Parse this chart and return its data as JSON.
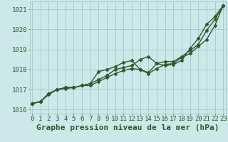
{
  "xlabel": "Graphe pression niveau de la mer (hPa)",
  "bg_color": "#cce8e8",
  "grid_color": "#aacccc",
  "line_color": "#2d5a2d",
  "x": [
    0,
    1,
    2,
    3,
    4,
    5,
    6,
    7,
    8,
    9,
    10,
    11,
    12,
    13,
    14,
    15,
    16,
    17,
    18,
    19,
    20,
    21,
    22,
    23
  ],
  "series": [
    [
      1016.3,
      1016.4,
      1016.8,
      1017.0,
      1017.05,
      1017.1,
      1017.2,
      1017.2,
      1017.4,
      1017.6,
      1017.8,
      1017.95,
      1018.05,
      1018.0,
      1017.85,
      1018.3,
      1018.2,
      1018.25,
      1018.45,
      1019.05,
      1019.55,
      1020.25,
      1020.65,
      1021.2
    ],
    [
      1016.3,
      1016.4,
      1016.8,
      1017.0,
      1017.1,
      1017.1,
      1017.2,
      1017.3,
      1017.9,
      1018.0,
      1018.15,
      1018.35,
      1018.45,
      1018.0,
      1017.8,
      1018.05,
      1018.25,
      1018.3,
      1018.6,
      1018.8,
      1019.15,
      1019.5,
      1020.2,
      1021.2
    ],
    [
      1016.3,
      1016.4,
      1016.75,
      1017.0,
      1017.1,
      1017.1,
      1017.2,
      1017.3,
      1017.5,
      1017.7,
      1018.0,
      1018.1,
      1018.2,
      1018.5,
      1018.65,
      1018.3,
      1018.4,
      1018.4,
      1018.65,
      1018.95,
      1019.25,
      1019.95,
      1020.5,
      1021.2
    ]
  ],
  "ylim": [
    1015.8,
    1021.4
  ],
  "xlim": [
    -0.3,
    23.3
  ],
  "yticks": [
    1016,
    1017,
    1018,
    1019,
    1020,
    1021
  ],
  "xticks": [
    0,
    1,
    2,
    3,
    4,
    5,
    6,
    7,
    8,
    9,
    10,
    11,
    12,
    13,
    14,
    15,
    16,
    17,
    18,
    19,
    20,
    21,
    22,
    23
  ],
  "xtick_labels": [
    "0",
    "1",
    "2",
    "3",
    "4",
    "5",
    "6",
    "7",
    "8",
    "9",
    "10",
    "11",
    "12",
    "13",
    "14",
    "15",
    "16",
    "17",
    "18",
    "19",
    "20",
    "21",
    "22",
    "23"
  ],
  "xlabel_fontsize": 8,
  "tick_fontsize": 6.5,
  "marker": "D",
  "markersize": 2.5,
  "linewidth": 1.0
}
